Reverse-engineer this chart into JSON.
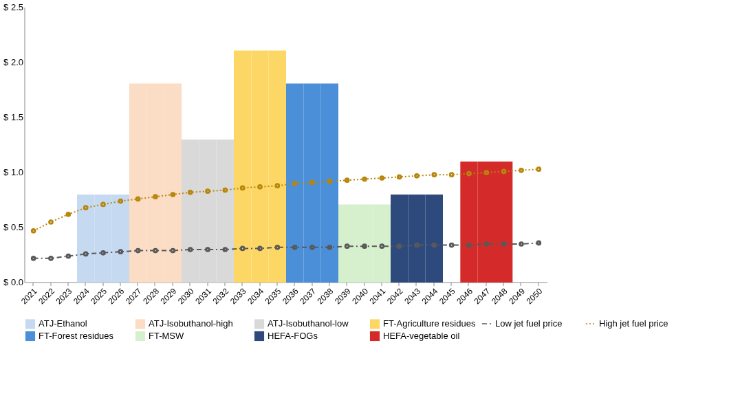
{
  "chart_data": {
    "type": "bar",
    "categories": [
      "2021",
      "2022",
      "2023",
      "2024",
      "2025",
      "2026",
      "2027",
      "2028",
      "2029",
      "2030",
      "2031",
      "2032",
      "2033",
      "2034",
      "2035",
      "2036",
      "2037",
      "2038",
      "2039",
      "2040",
      "2041",
      "2042",
      "2043",
      "2044",
      "2045",
      "2046",
      "2047",
      "2048",
      "2049",
      "2050"
    ],
    "series": [
      {
        "name": "ATJ-Ethanol",
        "color": "#c5d9f1",
        "values": [
          null,
          null,
          null,
          0.8,
          0.8,
          0.8,
          null,
          null,
          null,
          null,
          null,
          null,
          null,
          null,
          null,
          null,
          null,
          null,
          null,
          null,
          null,
          null,
          null,
          null,
          null,
          null,
          null,
          null,
          null,
          null
        ]
      },
      {
        "name": "ATJ-Isobuthanol-high",
        "color": "#fbdcc4",
        "values": [
          null,
          null,
          null,
          null,
          null,
          null,
          1.81,
          1.81,
          1.81,
          null,
          null,
          null,
          null,
          null,
          null,
          null,
          null,
          null,
          null,
          null,
          null,
          null,
          null,
          null,
          null,
          null,
          null,
          null,
          null,
          null
        ]
      },
      {
        "name": "ATJ-Isobuthanol-low",
        "color": "#d9d9d9",
        "values": [
          null,
          null,
          null,
          null,
          null,
          null,
          null,
          null,
          null,
          1.3,
          1.3,
          1.3,
          null,
          null,
          null,
          null,
          null,
          null,
          null,
          null,
          null,
          null,
          null,
          null,
          null,
          null,
          null,
          null,
          null,
          null
        ]
      },
      {
        "name": "FT-Agriculture residues",
        "color": "#fcd765",
        "values": [
          null,
          null,
          null,
          null,
          null,
          null,
          null,
          null,
          null,
          null,
          null,
          null,
          2.11,
          2.11,
          2.11,
          null,
          null,
          null,
          null,
          null,
          null,
          null,
          null,
          null,
          null,
          null,
          null,
          null,
          null,
          null
        ]
      },
      {
        "name": "FT-Forest residues",
        "color": "#4a8fd8",
        "values": [
          null,
          null,
          null,
          null,
          null,
          null,
          null,
          null,
          null,
          null,
          null,
          null,
          null,
          null,
          null,
          1.81,
          1.81,
          1.81,
          null,
          null,
          null,
          null,
          null,
          null,
          null,
          null,
          null,
          null,
          null,
          null
        ]
      },
      {
        "name": "FT-MSW",
        "color": "#d6efcc",
        "values": [
          null,
          null,
          null,
          null,
          null,
          null,
          null,
          null,
          null,
          null,
          null,
          null,
          null,
          null,
          null,
          null,
          null,
          null,
          0.71,
          0.71,
          0.71,
          null,
          null,
          null,
          null,
          null,
          null,
          null,
          null,
          null
        ]
      },
      {
        "name": "HEFA-FOGs",
        "color": "#2e4a7d",
        "values": [
          null,
          null,
          null,
          null,
          null,
          null,
          null,
          null,
          null,
          null,
          null,
          null,
          null,
          null,
          null,
          null,
          null,
          null,
          null,
          null,
          null,
          0.8,
          0.8,
          0.8,
          null,
          null,
          null,
          null,
          null,
          null
        ]
      },
      {
        "name": "HEFA-vegetable oil",
        "color": "#d42a2a",
        "values": [
          null,
          null,
          null,
          null,
          null,
          null,
          null,
          null,
          null,
          null,
          null,
          null,
          null,
          null,
          null,
          null,
          null,
          null,
          null,
          null,
          null,
          null,
          null,
          null,
          null,
          1.1,
          1.1,
          1.1,
          null,
          null
        ]
      },
      {
        "name": "Low jet fuel price",
        "type": "line",
        "line_style": "dashed",
        "color": "#595959",
        "values": [
          0.22,
          0.22,
          0.24,
          0.26,
          0.27,
          0.28,
          0.29,
          0.29,
          0.29,
          0.3,
          0.3,
          0.3,
          0.31,
          0.31,
          0.32,
          0.32,
          0.32,
          0.32,
          0.33,
          0.33,
          0.33,
          0.33,
          0.34,
          0.34,
          0.34,
          0.34,
          0.35,
          0.35,
          0.35,
          0.36
        ]
      },
      {
        "name": "High jet fuel price",
        "type": "line",
        "line_style": "dotted",
        "color": "#b8860b",
        "values": [
          0.47,
          0.55,
          0.62,
          0.68,
          0.71,
          0.74,
          0.76,
          0.78,
          0.8,
          0.82,
          0.83,
          0.84,
          0.86,
          0.87,
          0.88,
          0.9,
          0.91,
          0.92,
          0.93,
          0.94,
          0.95,
          0.96,
          0.97,
          0.98,
          0.98,
          0.99,
          1.0,
          1.01,
          1.02,
          1.03
        ]
      }
    ],
    "ylim": [
      0,
      2.5
    ],
    "yticks": [
      {
        "value": 0,
        "label": "$ 0.0"
      },
      {
        "value": 0.5,
        "label": "$ 0.5"
      },
      {
        "value": 1.0,
        "label": "$ 1.0"
      },
      {
        "value": 1.5,
        "label": "$ 1.5"
      },
      {
        "value": 2.0,
        "label": "$ 2.0"
      },
      {
        "value": 2.5,
        "label": "$ 2.5"
      }
    ],
    "marker": "circle",
    "legend": "bottom",
    "grid": false
  }
}
